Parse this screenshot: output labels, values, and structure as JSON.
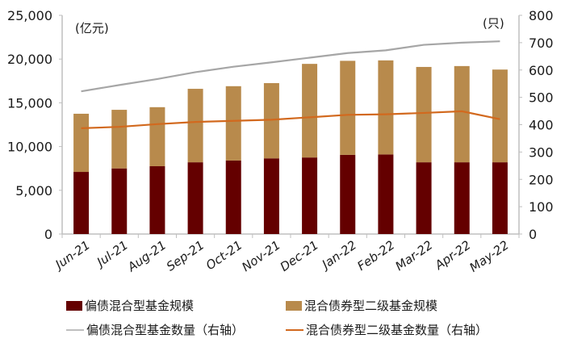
{
  "chart_data": {
    "type": "bar",
    "subtype": "stacked bar + line (dual axis)",
    "title": "",
    "categories": [
      "Jun-21",
      "Jul-21",
      "Aug-21",
      "Sep-21",
      "Oct-21",
      "Nov-21",
      "Dec-21",
      "Jan-22",
      "Feb-22",
      "Mar-22",
      "Apr-22",
      "May-22"
    ],
    "left_axis": {
      "unit_label": "(亿元)",
      "ylim": [
        0,
        25000
      ],
      "ticks": [
        "0",
        "5,000",
        "10,000",
        "15,000",
        "20,000",
        "25,000"
      ]
    },
    "right_axis": {
      "unit_label": "(只)",
      "ylim": [
        0,
        800
      ],
      "ticks": [
        "0",
        "100",
        "200",
        "300",
        "400",
        "500",
        "600",
        "700",
        "800"
      ]
    },
    "series": [
      {
        "name": "偏债混合型基金规模",
        "type": "bar",
        "axis": "left",
        "color": "#640000",
        "values": [
          7100,
          7500,
          7750,
          8200,
          8400,
          8650,
          8750,
          9050,
          9100,
          8200,
          8200,
          8200
        ]
      },
      {
        "name": "混合债券型二级基金规模",
        "type": "bar",
        "axis": "left",
        "color": "#B88A4C",
        "values": [
          6650,
          6700,
          6750,
          8400,
          8500,
          8600,
          10700,
          10750,
          10750,
          10900,
          11000,
          10600
        ]
      },
      {
        "name": "偏债混合型基金数量（右轴）",
        "type": "line",
        "axis": "right",
        "color": "#A6A6A6",
        "values": [
          522,
          545,
          567,
          592,
          612,
          628,
          645,
          662,
          672,
          692,
          700,
          705
        ]
      },
      {
        "name": "混合债券型二级基金数量（右轴）",
        "type": "line",
        "axis": "right",
        "color": "#D2691E",
        "values": [
          387,
          392,
          402,
          410,
          414,
          418,
          427,
          436,
          438,
          443,
          449,
          420
        ]
      }
    ],
    "grid": false,
    "legend_position": "bottom"
  },
  "legend": {
    "items": [
      {
        "label": "偏债混合型基金规模"
      },
      {
        "label": "混合债券型二级基金规模"
      },
      {
        "label": "偏债混合型基金数量（右轴）"
      },
      {
        "label": "混合债券型二级基金数量（右轴）"
      }
    ]
  }
}
